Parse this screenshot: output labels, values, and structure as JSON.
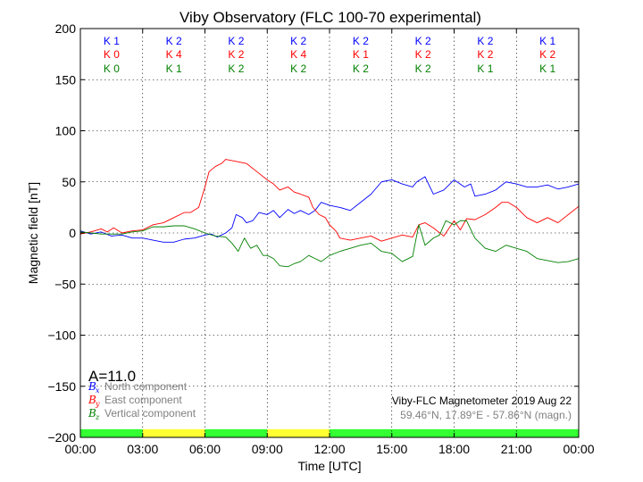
{
  "chart_data": {
    "type": "line",
    "title": "Viby Observatory (FLC 100-70 experimental)",
    "xlabel": "Time [UTC]",
    "ylabel": "Magnetic field [nT]",
    "xlim": [
      0,
      24
    ],
    "ylim": [
      -200,
      200
    ],
    "x_tick_labels": [
      "00:00",
      "03:00",
      "06:00",
      "09:00",
      "12:00",
      "15:00",
      "18:00",
      "21:00",
      "00:00"
    ],
    "y_ticks": [
      200,
      150,
      100,
      50,
      0,
      -50,
      -100,
      -150,
      -200
    ],
    "y_tick_labels": [
      "200",
      "150",
      "100",
      "50",
      "0",
      "−50",
      "−100",
      "−150",
      "−200"
    ],
    "grid": true,
    "k_index": {
      "x": [
        "K 1",
        "K 2",
        "K 2",
        "K 2",
        "K 2",
        "K 2",
        "K 2",
        "K 1"
      ],
      "y": [
        "K 0",
        "K 4",
        "K 2",
        "K 4",
        "K 1",
        "K 2",
        "K 2",
        "K 2"
      ],
      "z": [
        "K 0",
        "K 1",
        "K 2",
        "K 2",
        "K 2",
        "K 2",
        "K 1",
        "K 1"
      ]
    },
    "a_index": "A=11.0",
    "legend": {
      "position": "bottom-left",
      "entries": [
        {
          "symbol": "B",
          "sub": "x",
          "label": "North component",
          "color": "#0000ff"
        },
        {
          "symbol": "B",
          "sub": "y",
          "label": "East component",
          "color": "#ff0000"
        },
        {
          "symbol": "B",
          "sub": "z",
          "label": "Vertical component",
          "color": "#008000"
        }
      ]
    },
    "info_line1": "Viby-FLC Magnetometer 2019 Aug 22",
    "info_line2": "59.46°N, 17.89°E - 57.86°N (magn.)",
    "daylight_bar": {
      "colors": {
        "green": "#33ff33",
        "yellow": "#ffff33"
      },
      "segments": [
        {
          "from": 0,
          "to": 3,
          "color": "green"
        },
        {
          "from": 3,
          "to": 6,
          "color": "yellow"
        },
        {
          "from": 6,
          "to": 9,
          "color": "green"
        },
        {
          "from": 9,
          "to": 12,
          "color": "yellow"
        },
        {
          "from": 12,
          "to": 24,
          "color": "green"
        }
      ]
    },
    "series": [
      {
        "component": "x",
        "color": "#0000ff",
        "points": [
          [
            0,
            2
          ],
          [
            0.5,
            -1
          ],
          [
            1,
            1
          ],
          [
            1.5,
            -3
          ],
          [
            2,
            -2
          ],
          [
            2.5,
            -5
          ],
          [
            3,
            -5
          ],
          [
            3.5,
            -7
          ],
          [
            4,
            -9
          ],
          [
            4.5,
            -9
          ],
          [
            5,
            -6
          ],
          [
            5.5,
            -5
          ],
          [
            6,
            -2
          ],
          [
            6.3,
            -1
          ],
          [
            6.6,
            -4
          ],
          [
            7,
            0
          ],
          [
            7.3,
            5
          ],
          [
            7.5,
            18
          ],
          [
            7.8,
            15
          ],
          [
            8,
            10
          ],
          [
            8.3,
            12
          ],
          [
            8.6,
            20
          ],
          [
            9,
            18
          ],
          [
            9.3,
            22
          ],
          [
            9.6,
            15
          ],
          [
            10,
            23
          ],
          [
            10.3,
            19
          ],
          [
            10.6,
            22
          ],
          [
            11,
            18
          ],
          [
            11.3,
            22
          ],
          [
            11.6,
            30
          ],
          [
            12,
            27
          ],
          [
            12.5,
            25
          ],
          [
            13,
            22
          ],
          [
            13.5,
            30
          ],
          [
            14,
            38
          ],
          [
            14.5,
            50
          ],
          [
            15,
            52
          ],
          [
            15.5,
            48
          ],
          [
            16,
            45
          ],
          [
            16.2,
            50
          ],
          [
            16.6,
            55
          ],
          [
            17,
            38
          ],
          [
            17.5,
            42
          ],
          [
            18,
            52
          ],
          [
            18.5,
            45
          ],
          [
            18.8,
            48
          ],
          [
            19,
            36
          ],
          [
            19.5,
            38
          ],
          [
            20,
            42
          ],
          [
            20.5,
            50
          ],
          [
            21,
            48
          ],
          [
            21.5,
            45
          ],
          [
            22,
            45
          ],
          [
            22.5,
            47
          ],
          [
            23,
            43
          ],
          [
            23.5,
            45
          ],
          [
            24,
            48
          ]
        ]
      },
      {
        "component": "y",
        "color": "#ff0000",
        "points": [
          [
            0,
            -1
          ],
          [
            0.5,
            1
          ],
          [
            1,
            4
          ],
          [
            1.3,
            1
          ],
          [
            1.6,
            5
          ],
          [
            2,
            0
          ],
          [
            2.5,
            2
          ],
          [
            3,
            3
          ],
          [
            3.5,
            8
          ],
          [
            4,
            10
          ],
          [
            4.5,
            15
          ],
          [
            5,
            20
          ],
          [
            5.3,
            20
          ],
          [
            5.7,
            25
          ],
          [
            6,
            45
          ],
          [
            6.2,
            60
          ],
          [
            6.5,
            65
          ],
          [
            6.8,
            68
          ],
          [
            7,
            72
          ],
          [
            7.5,
            70
          ],
          [
            8,
            68
          ],
          [
            8.5,
            60
          ],
          [
            9,
            52
          ],
          [
            9.3,
            48
          ],
          [
            9.6,
            42
          ],
          [
            10,
            45
          ],
          [
            10.3,
            40
          ],
          [
            10.6,
            38
          ],
          [
            11,
            35
          ],
          [
            11.2,
            25
          ],
          [
            11.5,
            18
          ],
          [
            11.8,
            15
          ],
          [
            12,
            8
          ],
          [
            12.3,
            2
          ],
          [
            12.5,
            -5
          ],
          [
            13,
            -7
          ],
          [
            13.5,
            -5
          ],
          [
            14,
            -3
          ],
          [
            14.5,
            -8
          ],
          [
            15,
            -5
          ],
          [
            15.5,
            -2
          ],
          [
            16,
            -4
          ],
          [
            16.3,
            8
          ],
          [
            16.6,
            10
          ],
          [
            17,
            5
          ],
          [
            17.5,
            -3
          ],
          [
            18,
            12
          ],
          [
            18.3,
            3
          ],
          [
            18.6,
            14
          ],
          [
            19,
            13
          ],
          [
            19.5,
            18
          ],
          [
            20,
            25
          ],
          [
            20.3,
            30
          ],
          [
            20.6,
            30
          ],
          [
            21,
            25
          ],
          [
            21.5,
            15
          ],
          [
            22,
            10
          ],
          [
            22.5,
            15
          ],
          [
            23,
            10
          ],
          [
            23.5,
            18
          ],
          [
            24,
            26
          ]
        ]
      },
      {
        "component": "z",
        "color": "#008000",
        "points": [
          [
            0,
            1
          ],
          [
            0.5,
            0
          ],
          [
            1,
            -1
          ],
          [
            1.5,
            -1
          ],
          [
            2,
            -1
          ],
          [
            2.5,
            1
          ],
          [
            3,
            2
          ],
          [
            3.5,
            6
          ],
          [
            4,
            6
          ],
          [
            4.5,
            7
          ],
          [
            5,
            7
          ],
          [
            5.5,
            4
          ],
          [
            6,
            0
          ],
          [
            6.5,
            -3
          ],
          [
            7,
            -4
          ],
          [
            7.3,
            -10
          ],
          [
            7.6,
            -18
          ],
          [
            7.9,
            -5
          ],
          [
            8.2,
            -15
          ],
          [
            8.5,
            -12
          ],
          [
            8.8,
            -22
          ],
          [
            9,
            -22
          ],
          [
            9.3,
            -25
          ],
          [
            9.6,
            -32
          ],
          [
            10,
            -33
          ],
          [
            10.3,
            -30
          ],
          [
            10.6,
            -28
          ],
          [
            11,
            -22
          ],
          [
            11.3,
            -25
          ],
          [
            11.6,
            -28
          ],
          [
            12,
            -22
          ],
          [
            12.5,
            -18
          ],
          [
            13,
            -15
          ],
          [
            13.5,
            -12
          ],
          [
            14,
            -10
          ],
          [
            14.5,
            -18
          ],
          [
            15,
            -20
          ],
          [
            15.5,
            -28
          ],
          [
            16,
            -23
          ],
          [
            16.3,
            8
          ],
          [
            16.6,
            -12
          ],
          [
            17,
            -5
          ],
          [
            17.3,
            -2
          ],
          [
            17.6,
            12
          ],
          [
            18,
            8
          ],
          [
            18.3,
            12
          ],
          [
            18.6,
            12
          ],
          [
            19,
            -5
          ],
          [
            19.5,
            -15
          ],
          [
            20,
            -18
          ],
          [
            20.5,
            -12
          ],
          [
            21,
            -15
          ],
          [
            21.5,
            -18
          ],
          [
            22,
            -25
          ],
          [
            22.5,
            -27
          ],
          [
            23,
            -29
          ],
          [
            23.5,
            -28
          ],
          [
            24,
            -25
          ]
        ]
      }
    ]
  }
}
